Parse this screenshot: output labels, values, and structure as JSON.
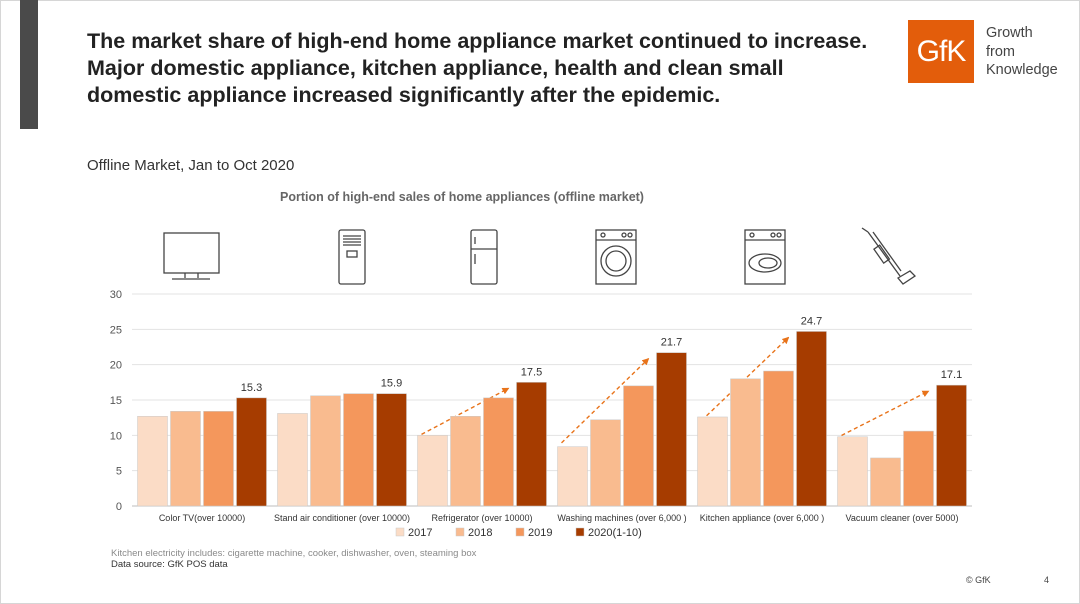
{
  "slide": {
    "title": "The market share of high-end home appliance market continued to increase. Major domestic appliance, kitchen appliance, health and clean small domestic appliance increased significantly after the epidemic.",
    "subtitle": "Offline Market, Jan to Oct 2020",
    "logo_text": "GfK",
    "tagline": "Growth\nfrom\nKnowledge",
    "note": "Kitchen electricity includes: cigarette machine, cooker, dishwasher, oven, steaming box",
    "source": "Data source: GfK POS data",
    "copyright": "© GfK",
    "page_number": "4",
    "accent_color": "#e35d0b",
    "category_icons": [
      "tv-icon",
      "air-conditioner-icon",
      "refrigerator-icon",
      "washing-machine-icon",
      "dishwasher-icon",
      "vacuum-cleaner-icon"
    ]
  },
  "chart_data": {
    "type": "bar",
    "title": "Portion of high-end sales of home appliances (offline market)",
    "categories": [
      "Color TV(over 10000)",
      "Stand air conditioner (over 10000)",
      "Refrigerator (over 10000)",
      "Washing machines (over 6,000 )",
      "Kitchen appliance (over 6,000 )",
      "Vacuum cleaner (over 5000)"
    ],
    "series": [
      {
        "name": "2017",
        "color": "#fbdcc6",
        "values": [
          12.7,
          13.1,
          10.0,
          8.4,
          12.6,
          9.8
        ]
      },
      {
        "name": "2018",
        "color": "#f9bb8f",
        "values": [
          13.4,
          15.6,
          12.7,
          12.2,
          18.0,
          6.8
        ]
      },
      {
        "name": "2019",
        "color": "#f4975c",
        "values": [
          13.4,
          15.9,
          15.3,
          17.0,
          19.1,
          10.6
        ]
      },
      {
        "name": "2020(1-10)",
        "color": "#a63c00",
        "values": [
          15.3,
          15.9,
          17.5,
          21.7,
          24.7,
          17.1
        ]
      }
    ],
    "data_labels": [
      "15.3",
      "15.9",
      "17.5",
      "21.7",
      "24.7",
      "17.1"
    ],
    "trend_arrow_categories": [
      2,
      3,
      4,
      5
    ],
    "ylim": [
      0,
      30
    ],
    "yticks": [
      0,
      5,
      10,
      15,
      20,
      25,
      30
    ],
    "grid": true,
    "legend_position": "bottom",
    "xlabel": "",
    "ylabel": ""
  }
}
